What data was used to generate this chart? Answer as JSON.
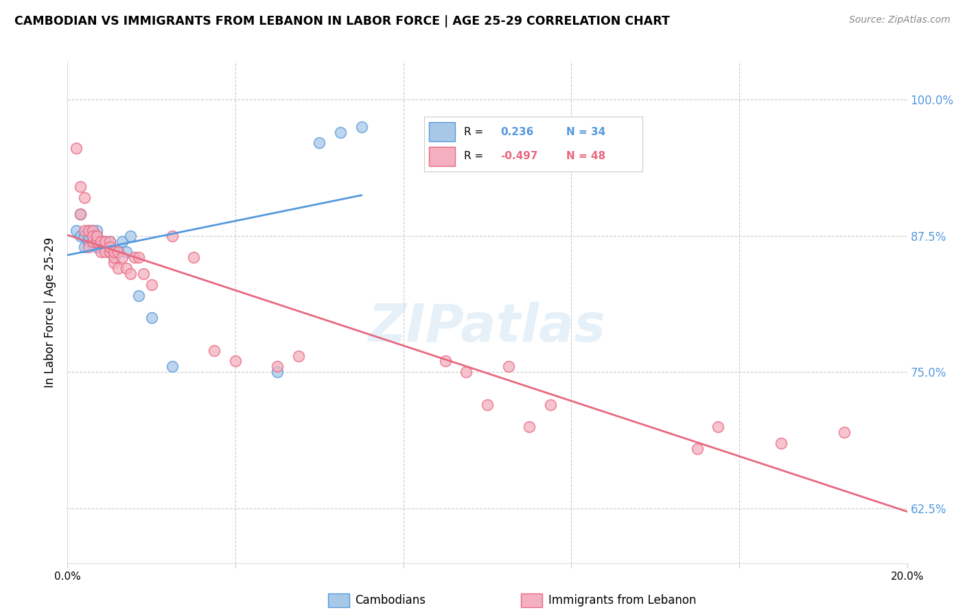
{
  "title": "CAMBODIAN VS IMMIGRANTS FROM LEBANON IN LABOR FORCE | AGE 25-29 CORRELATION CHART",
  "source": "Source: ZipAtlas.com",
  "ylabel": "In Labor Force | Age 25-29",
  "ytick_labels": [
    "62.5%",
    "75.0%",
    "87.5%",
    "100.0%"
  ],
  "ytick_values": [
    0.625,
    0.75,
    0.875,
    1.0
  ],
  "xlim": [
    0.0,
    0.2
  ],
  "ylim": [
    0.575,
    1.035
  ],
  "color_cambodian": "#a8c8e8",
  "color_lebanon": "#f4b0c0",
  "color_line_cambodian": "#5599dd",
  "color_line_lebanon": "#e86880",
  "watermark": "ZIPatlas",
  "cambodian_x": [
    0.002,
    0.003,
    0.003,
    0.004,
    0.004,
    0.005,
    0.005,
    0.005,
    0.005,
    0.006,
    0.006,
    0.006,
    0.007,
    0.007,
    0.007,
    0.007,
    0.008,
    0.008,
    0.009,
    0.009,
    0.01,
    0.01,
    0.011,
    0.012,
    0.013,
    0.014,
    0.015,
    0.017,
    0.02,
    0.025,
    0.05,
    0.06,
    0.065,
    0.07
  ],
  "cambodian_y": [
    0.88,
    0.895,
    0.875,
    0.875,
    0.865,
    0.87,
    0.88,
    0.87,
    0.875,
    0.87,
    0.88,
    0.87,
    0.875,
    0.88,
    0.865,
    0.87,
    0.865,
    0.87,
    0.865,
    0.87,
    0.86,
    0.87,
    0.855,
    0.86,
    0.87,
    0.86,
    0.875,
    0.82,
    0.8,
    0.755,
    0.75,
    0.96,
    0.97,
    0.975
  ],
  "lebanon_x": [
    0.002,
    0.003,
    0.003,
    0.004,
    0.004,
    0.005,
    0.005,
    0.006,
    0.006,
    0.006,
    0.007,
    0.007,
    0.007,
    0.008,
    0.008,
    0.009,
    0.009,
    0.01,
    0.01,
    0.01,
    0.011,
    0.011,
    0.011,
    0.012,
    0.012,
    0.013,
    0.014,
    0.015,
    0.016,
    0.017,
    0.018,
    0.02,
    0.025,
    0.03,
    0.035,
    0.04,
    0.05,
    0.055,
    0.09,
    0.095,
    0.1,
    0.105,
    0.11,
    0.115,
    0.15,
    0.155,
    0.17,
    0.185
  ],
  "lebanon_y": [
    0.955,
    0.92,
    0.895,
    0.91,
    0.88,
    0.88,
    0.865,
    0.87,
    0.88,
    0.875,
    0.875,
    0.87,
    0.875,
    0.86,
    0.87,
    0.87,
    0.86,
    0.86,
    0.87,
    0.865,
    0.85,
    0.855,
    0.86,
    0.845,
    0.86,
    0.855,
    0.845,
    0.84,
    0.855,
    0.855,
    0.84,
    0.83,
    0.875,
    0.855,
    0.77,
    0.76,
    0.755,
    0.765,
    0.76,
    0.75,
    0.72,
    0.755,
    0.7,
    0.72,
    0.68,
    0.7,
    0.685,
    0.695
  ]
}
